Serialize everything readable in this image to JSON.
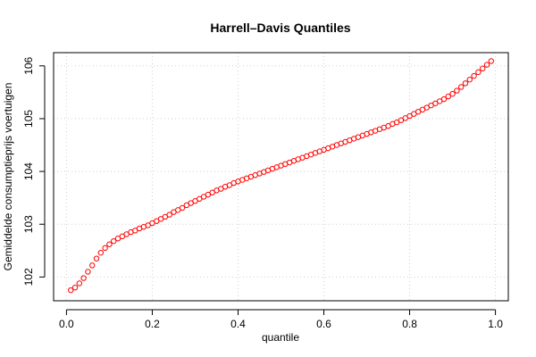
{
  "chart_data": {
    "type": "scatter",
    "title": "Harrell–Davis Quantiles",
    "xlabel": "quantile",
    "ylabel": "Gemiddelde consumptieprijs voertuigen",
    "xlim": [
      -0.03,
      1.03
    ],
    "ylim": [
      101.55,
      106.25
    ],
    "x_ticks": [
      0.0,
      0.2,
      0.4,
      0.6,
      0.8,
      1.0
    ],
    "x_tick_labels": [
      "0.0",
      "0.2",
      "0.4",
      "0.6",
      "0.8",
      "1.0"
    ],
    "y_ticks": [
      102,
      103,
      104,
      105,
      106
    ],
    "y_tick_labels": [
      "102",
      "103",
      "104",
      "105",
      "106"
    ],
    "grid": true,
    "marker": "open-circle",
    "series": [
      {
        "color": "#ff0000",
        "x": [
          0.01,
          0.02,
          0.03,
          0.04,
          0.05,
          0.06,
          0.07,
          0.08,
          0.09,
          0.1,
          0.11,
          0.12,
          0.13,
          0.14,
          0.15,
          0.16,
          0.17,
          0.18,
          0.19,
          0.2,
          0.21,
          0.22,
          0.23,
          0.24,
          0.25,
          0.26,
          0.27,
          0.28,
          0.29,
          0.3,
          0.31,
          0.32,
          0.33,
          0.34,
          0.35,
          0.36,
          0.37,
          0.38,
          0.39,
          0.4,
          0.41,
          0.42,
          0.43,
          0.44,
          0.45,
          0.46,
          0.47,
          0.48,
          0.49,
          0.5,
          0.51,
          0.52,
          0.53,
          0.54,
          0.55,
          0.56,
          0.57,
          0.58,
          0.59,
          0.6,
          0.61,
          0.62,
          0.63,
          0.64,
          0.65,
          0.66,
          0.67,
          0.68,
          0.69,
          0.7,
          0.71,
          0.72,
          0.73,
          0.74,
          0.75,
          0.76,
          0.77,
          0.78,
          0.79,
          0.8,
          0.81,
          0.82,
          0.83,
          0.84,
          0.85,
          0.86,
          0.87,
          0.88,
          0.89,
          0.9,
          0.91,
          0.92,
          0.93,
          0.94,
          0.95,
          0.96,
          0.97,
          0.98,
          0.99
        ],
        "y": [
          101.75,
          101.8,
          101.88,
          101.98,
          102.1,
          102.22,
          102.35,
          102.46,
          102.55,
          102.62,
          102.68,
          102.73,
          102.77,
          102.81,
          102.85,
          102.88,
          102.92,
          102.95,
          102.98,
          103.02,
          103.06,
          103.1,
          103.14,
          103.18,
          103.23,
          103.27,
          103.31,
          103.36,
          103.4,
          103.44,
          103.48,
          103.52,
          103.56,
          103.6,
          103.64,
          103.67,
          103.71,
          103.74,
          103.78,
          103.81,
          103.84,
          103.87,
          103.9,
          103.93,
          103.96,
          103.99,
          104.02,
          104.05,
          104.08,
          104.11,
          104.14,
          104.17,
          104.2,
          104.23,
          104.26,
          104.29,
          104.32,
          104.35,
          104.38,
          104.41,
          104.44,
          104.47,
          104.5,
          104.53,
          104.56,
          104.59,
          104.62,
          104.65,
          104.68,
          104.71,
          104.74,
          104.77,
          104.8,
          104.83,
          104.86,
          104.9,
          104.93,
          104.97,
          105.01,
          105.05,
          105.09,
          105.13,
          105.17,
          105.21,
          105.25,
          105.29,
          105.33,
          105.37,
          105.42,
          105.47,
          105.53,
          105.6,
          105.67,
          105.74,
          105.81,
          105.88,
          105.95,
          106.02,
          106.09
        ]
      }
    ]
  }
}
